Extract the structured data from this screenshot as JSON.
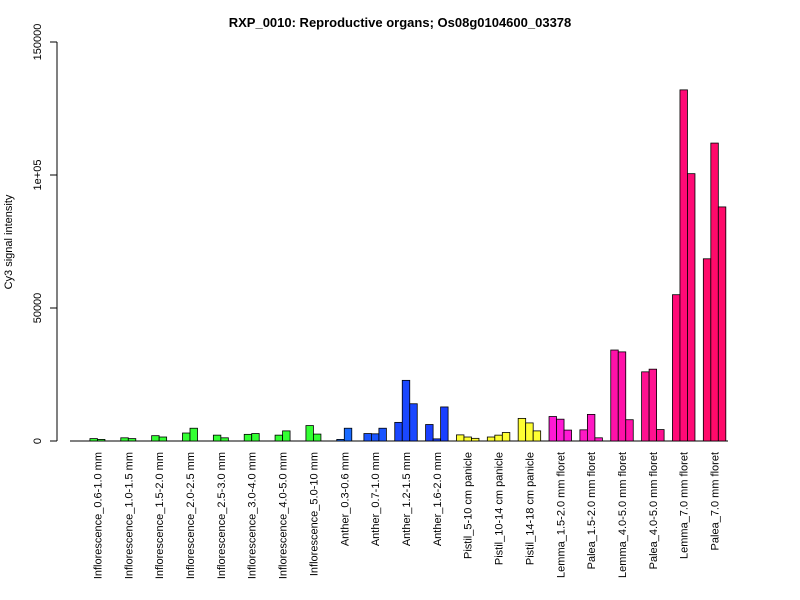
{
  "chart_data": {
    "type": "bar",
    "title": "RXP_0010: Reproductive organs; Os08g0104600_03378",
    "xlabel": "",
    "ylabel": "Cy3 signal intensity",
    "ylim": [
      0,
      150000
    ],
    "yticks": [
      0,
      50000,
      100000,
      150000
    ],
    "ytick_labels": [
      "0",
      "50000",
      "1e+05",
      "150000"
    ],
    "grid": false,
    "legend": "none",
    "groups": [
      {
        "label": "Inflorescence_0.6-1.0 mm",
        "color": "#33ff33",
        "values": [
          900,
          600
        ]
      },
      {
        "label": "Inflorescence_1.0-1.5 mm",
        "color": "#33ff33",
        "values": [
          1200,
          900
        ]
      },
      {
        "label": "Inflorescence_1.5-2.0 mm",
        "color": "#33ff33",
        "values": [
          2000,
          1500
        ]
      },
      {
        "label": "Inflorescence_2.0-2.5 mm",
        "color": "#33ff33",
        "values": [
          3000,
          4800
        ]
      },
      {
        "label": "Inflorescence_2.5-3.0 mm",
        "color": "#33ff33",
        "values": [
          2200,
          1200
        ]
      },
      {
        "label": "Inflorescence_3.0-4.0 mm",
        "color": "#33ff33",
        "values": [
          2500,
          2800
        ]
      },
      {
        "label": "Inflorescence_4.0-5.0 mm",
        "color": "#33ff33",
        "values": [
          2200,
          3800
        ]
      },
      {
        "label": "Inflorescence_5.0-10 mm",
        "color": "#33ff33",
        "values": [
          5800,
          2600
        ]
      },
      {
        "label": "Anther_0.3-0.6 mm",
        "color": "#1a6bff",
        "values": [
          600,
          4800
        ]
      },
      {
        "label": "Anther_0.7-1.0 mm",
        "color": "#1a55ff",
        "values": [
          2800,
          2700,
          4800
        ]
      },
      {
        "label": "Anther_1.2-1.5 mm",
        "color": "#1a47ff",
        "values": [
          7000,
          22800,
          14000
        ]
      },
      {
        "label": "Anther_1.6-2.0 mm",
        "color": "#1a3fff",
        "values": [
          6200,
          800,
          12800
        ]
      },
      {
        "label": "Pistil_5-10 cm panicle",
        "color": "#ffff33",
        "values": [
          2300,
          1500,
          1000
        ]
      },
      {
        "label": "Pistil_10-14 cm panicle",
        "color": "#ffff33",
        "values": [
          1500,
          2200,
          3200
        ]
      },
      {
        "label": "Pistil_14-18 cm panicle",
        "color": "#ffff33",
        "values": [
          8500,
          6800,
          3800
        ]
      },
      {
        "label": "Lemma_1.5-2.0 mm floret",
        "color": "#ff19d4",
        "values": [
          9200,
          8200,
          4100
        ]
      },
      {
        "label": "Palea_1.5-2.0 mm floret",
        "color": "#ff19c4",
        "values": [
          4200,
          10000,
          1200
        ]
      },
      {
        "label": "Lemma_4.0-5.0 mm floret",
        "color": "#ff11a8",
        "values": [
          34200,
          33500,
          8000
        ]
      },
      {
        "label": "Palea_4.0-5.0 mm floret",
        "color": "#ff1190",
        "values": [
          26000,
          27000,
          4300
        ]
      },
      {
        "label": "Lemma_7.0 mm floret",
        "color": "#ff0a76",
        "values": [
          55000,
          132000,
          100500
        ]
      },
      {
        "label": "Palea_7.0 mm floret",
        "color": "#ff0a6a",
        "values": [
          68500,
          112000,
          88000
        ]
      }
    ]
  }
}
